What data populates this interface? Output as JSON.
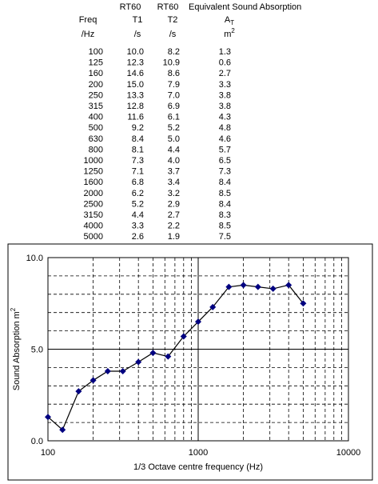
{
  "table": {
    "group_headers": [
      "RT60",
      "RT60",
      "Equivalent Sound Absorption"
    ],
    "columns": [
      {
        "name": "Freq",
        "unit": "/Hz"
      },
      {
        "name": "T1",
        "unit": "/s"
      },
      {
        "name": "T2",
        "unit": "/s"
      },
      {
        "name": {
          "base": "A",
          "sub": "T"
        },
        "unit": {
          "base": "m",
          "sup": "2"
        }
      }
    ],
    "rows": [
      [
        "100",
        "10.0",
        "8.2",
        "1.3"
      ],
      [
        "125",
        "12.3",
        "10.9",
        "0.6"
      ],
      [
        "160",
        "14.6",
        "8.6",
        "2.7"
      ],
      [
        "200",
        "15.0",
        "7.9",
        "3.3"
      ],
      [
        "250",
        "13.3",
        "7.0",
        "3.8"
      ],
      [
        "315",
        "12.8",
        "6.9",
        "3.8"
      ],
      [
        "400",
        "11.6",
        "6.1",
        "4.3"
      ],
      [
        "500",
        "9.2",
        "5.2",
        "4.8"
      ],
      [
        "630",
        "8.4",
        "5.0",
        "4.6"
      ],
      [
        "800",
        "8.1",
        "4.4",
        "5.7"
      ],
      [
        "1000",
        "7.3",
        "4.0",
        "6.5"
      ],
      [
        "1250",
        "7.1",
        "3.7",
        "7.3"
      ],
      [
        "1600",
        "6.8",
        "3.4",
        "8.4"
      ],
      [
        "2000",
        "6.2",
        "3.2",
        "8.5"
      ],
      [
        "2500",
        "5.2",
        "2.9",
        "8.4"
      ],
      [
        "3150",
        "4.4",
        "2.7",
        "8.3"
      ],
      [
        "4000",
        "3.3",
        "2.2",
        "8.5"
      ],
      [
        "5000",
        "2.6",
        "1.9",
        "7.5"
      ]
    ]
  },
  "chart_data": {
    "type": "line",
    "x_label": "1/3 Octave centre frequency (Hz)",
    "y_label": "Sound Absorption m",
    "y_label_sup": "2",
    "x": [
      100,
      125,
      160,
      200,
      250,
      315,
      400,
      500,
      630,
      800,
      1000,
      1250,
      1600,
      2000,
      2500,
      3150,
      4000,
      5000
    ],
    "values": [
      1.3,
      0.6,
      2.7,
      3.3,
      3.8,
      3.8,
      4.3,
      4.8,
      4.6,
      5.7,
      6.5,
      7.3,
      8.4,
      8.5,
      8.4,
      8.3,
      8.5,
      7.5
    ],
    "color": "#000080",
    "xscale": "log",
    "xlim": [
      100,
      10000
    ],
    "xticks": [
      100,
      1000,
      10000
    ],
    "xminorticks": [
      200,
      300,
      400,
      500,
      600,
      700,
      800,
      900,
      2000,
      3000,
      4000,
      5000,
      6000,
      7000,
      8000,
      9000
    ],
    "ylim": [
      0,
      10
    ],
    "yticks": [
      {
        "value": 0,
        "label": "0.0"
      },
      {
        "value": 5,
        "label": "5.0"
      },
      {
        "value": 10,
        "label": "10.0"
      }
    ],
    "yminorticks": [
      1,
      2,
      3,
      4,
      6,
      7,
      8,
      9
    ],
    "grid": true
  }
}
